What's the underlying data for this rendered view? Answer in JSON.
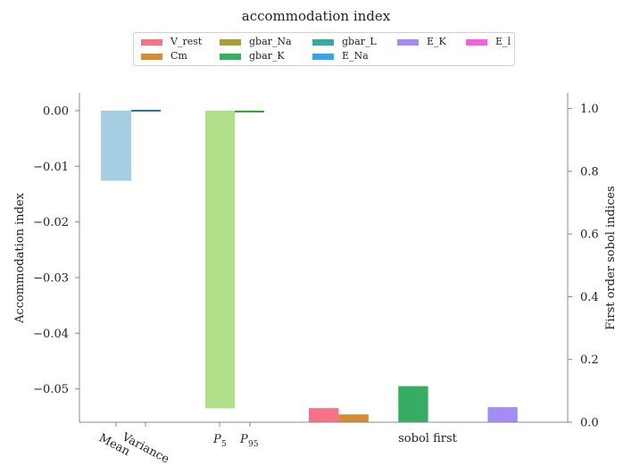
{
  "title": "accommodation index",
  "chart_data": {
    "type": "bar",
    "left_axis": {
      "label": "Accommodation index",
      "ylim": [
        -0.056,
        0.0032
      ],
      "ticks": [
        0.0,
        -0.01,
        -0.02,
        -0.03,
        -0.04,
        -0.05
      ],
      "tick_labels": [
        "0.00",
        "−0.01",
        "−0.02",
        "−0.03",
        "−0.04",
        "−0.05"
      ]
    },
    "right_axis": {
      "label": "First order sobol indices",
      "ylim": [
        0.0,
        1.05
      ],
      "ticks": [
        0.0,
        0.2,
        0.4,
        0.6,
        0.8,
        1.0
      ],
      "tick_labels": [
        "0.0",
        "0.2",
        "0.4",
        "0.6",
        "0.8",
        "1.0"
      ]
    },
    "x_tick_labels": {
      "mean": "Mean",
      "variance": "Variance",
      "p5": "P",
      "p5_sub": "5",
      "p95": "P",
      "p95_sub": "95",
      "sobol": "sobol first"
    },
    "statistics": [
      {
        "name": "Mean",
        "value": -0.0126,
        "color": "#a6cee3"
      },
      {
        "name": "Variance",
        "value": 0.00015,
        "color": "#1f78b4"
      },
      {
        "name": "P5",
        "value": -0.0535,
        "color": "#b2df8a"
      },
      {
        "name": "P95",
        "value": 0.0,
        "color": "#33a02c"
      }
    ],
    "sobol_first": [
      {
        "name": "V_rest",
        "value": 0.045,
        "color": "#f77189"
      },
      {
        "name": "Cm",
        "value": 0.025,
        "color": "#d58c32"
      },
      {
        "name": "gbar_Na",
        "value": 0.0,
        "color": "#a4a031"
      },
      {
        "name": "gbar_K",
        "value": 0.115,
        "color": "#36ad63"
      },
      {
        "name": "gbar_L",
        "value": 0.0,
        "color": "#39a7a3"
      },
      {
        "name": "E_Na",
        "value": 0.0,
        "color": "#3ba3ec"
      },
      {
        "name": "E_K",
        "value": 0.048,
        "color": "#a48cf4"
      },
      {
        "name": "E_l",
        "value": 0.0,
        "color": "#f561dd"
      }
    ],
    "legend": {
      "placement": "top-center",
      "entries": [
        "V_rest",
        "Cm",
        "gbar_Na",
        "gbar_K",
        "gbar_L",
        "E_Na",
        "E_K",
        "E_l"
      ]
    },
    "grid": false
  }
}
